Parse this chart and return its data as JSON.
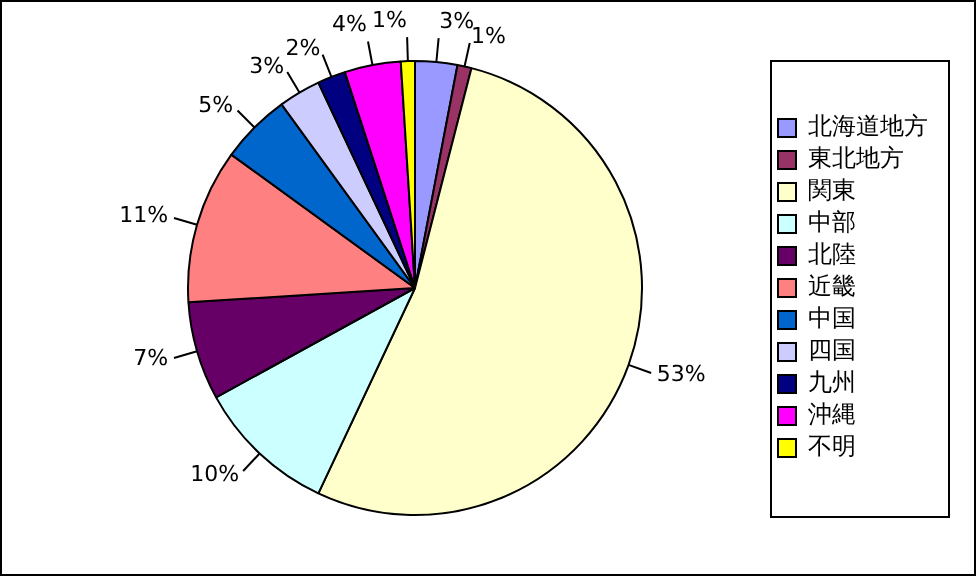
{
  "chart_data": {
    "type": "pie",
    "categories": [
      "北海道地方",
      "東北地方",
      "関東",
      "中部",
      "北陸",
      "近畿",
      "中国",
      "四国",
      "九州",
      "沖縄",
      "不明"
    ],
    "values": [
      3,
      1,
      53,
      10,
      7,
      11,
      5,
      3,
      2,
      4,
      1
    ],
    "value_labels": [
      "3%",
      "1%",
      "53%",
      "10%",
      "7%",
      "11%",
      "5%",
      "3%",
      "2%",
      "4%",
      "1%"
    ],
    "colors": [
      "#9999ff",
      "#993366",
      "#ffffcc",
      "#ccffff",
      "#660066",
      "#ff8080",
      "#0066cc",
      "#ccccff",
      "#000080",
      "#ff00ff",
      "#ffff00"
    ],
    "legend": "right"
  }
}
